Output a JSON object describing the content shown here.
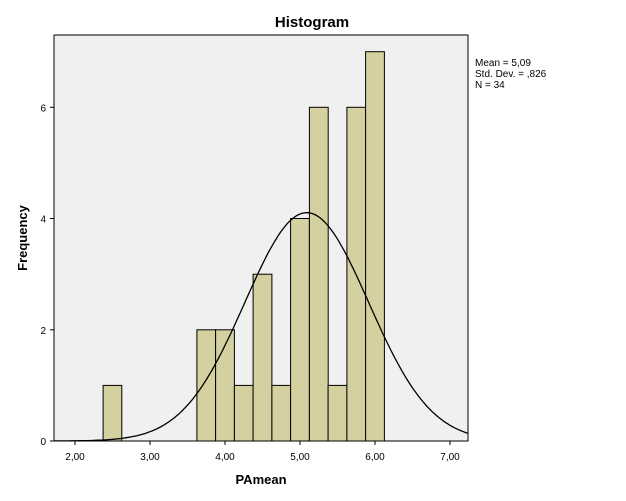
{
  "chart_data": {
    "type": "bar",
    "title": "Histogram",
    "xlabel": "PAmean",
    "ylabel": "Frequency",
    "xlim": [
      1.72,
      7.24
    ],
    "ylim": [
      0,
      7.3
    ],
    "x_ticks": [
      2,
      3,
      4,
      5,
      6,
      7
    ],
    "x_tick_labels": [
      "2,00",
      "3,00",
      "4,00",
      "5,00",
      "6,00",
      "7,00"
    ],
    "y_ticks": [
      0,
      2,
      4,
      6
    ],
    "y_tick_labels": [
      "0",
      "2",
      "4",
      "6"
    ],
    "bin_width": 0.25,
    "bins": [
      {
        "start": 2.375,
        "count": 1
      },
      {
        "start": 3.625,
        "count": 2
      },
      {
        "start": 3.875,
        "count": 2
      },
      {
        "start": 4.125,
        "count": 1
      },
      {
        "start": 4.375,
        "count": 3
      },
      {
        "start": 4.625,
        "count": 1
      },
      {
        "start": 4.875,
        "count": 4
      },
      {
        "start": 5.125,
        "count": 6
      },
      {
        "start": 5.375,
        "count": 1
      },
      {
        "start": 5.625,
        "count": 6
      },
      {
        "start": 5.875,
        "count": 7
      }
    ],
    "normal_curve": {
      "mean": 5.09,
      "sd": 0.826,
      "n": 34
    },
    "stats": [
      "Mean = 5,09",
      "Std. Dev. = ,826",
      "N = 34"
    ],
    "colors": {
      "bar_fill": "#d4d0a0",
      "bar_stroke": "#000000",
      "plot_background": "#f0f0f0",
      "curve": "#000000"
    },
    "grid": false,
    "legend": "right"
  }
}
